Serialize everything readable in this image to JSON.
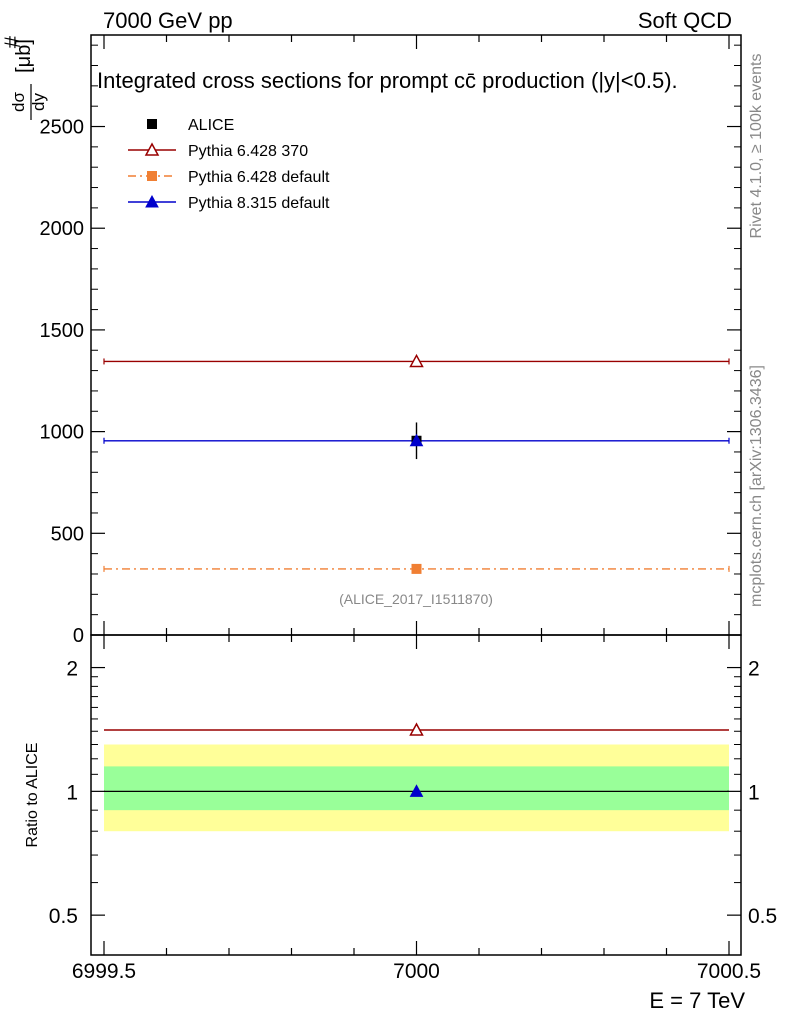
{
  "header": {
    "left": "7000 GeV pp",
    "right": "Soft QCD"
  },
  "side_labels": {
    "rivet": "Rivet 4.1.0, ≥ 100k events",
    "mcplots": "mcplots.cern.ch [arXiv:1306.3436]"
  },
  "chart_data": [
    {
      "type": "scatter",
      "panel": "main",
      "title": "Integrated cross sections for prompt cc̄ production (|y|<0.5).",
      "ylabel": "#dσ/dy [μb]",
      "ylabel_num": "dσ",
      "ylabel_den": "dy",
      "ylabel_prefix": "#",
      "ylabel_unit": "[μb]",
      "xlim": [
        6999.5,
        7000.5
      ],
      "ylim": [
        0,
        2950
      ],
      "y_ticks": [
        0,
        500,
        1000,
        1500,
        2000,
        2500
      ],
      "y_tick_labels": [
        "0",
        "500",
        "1000",
        "1500",
        "2000",
        "2500"
      ],
      "analysis_tag": "(ALICE_2017_I1511870)",
      "series": [
        {
          "name": "ALICE",
          "x": [
            7000
          ],
          "y": [
            955
          ],
          "xerr": [
            0
          ],
          "yerr": [
            90
          ],
          "color": "#000000",
          "marker": "square"
        },
        {
          "name": "Pythia 6.428 370",
          "x": [
            7000
          ],
          "y": [
            1345
          ],
          "xerr": [
            0.5
          ],
          "yerr": [
            25
          ],
          "color": "#990000",
          "marker": "open-triangle"
        },
        {
          "name": "Pythia 6.428 default",
          "x": [
            7000
          ],
          "y": [
            325
          ],
          "xerr": [
            0.5
          ],
          "yerr": [
            8
          ],
          "color": "#f07f33",
          "marker": "square"
        },
        {
          "name": "Pythia 8.315 default",
          "x": [
            7000
          ],
          "y": [
            955
          ],
          "xerr": [
            0.5
          ],
          "yerr": [
            18
          ],
          "color": "#0000cc",
          "marker": "triangle"
        }
      ]
    },
    {
      "type": "scatter",
      "panel": "ratio",
      "ylabel": "Ratio to ALICE",
      "xlabel": "E = 7 TeV",
      "xlim": [
        6999.5,
        7000.5
      ],
      "ylim": [
        0.4,
        2.4
      ],
      "y_scale": "log",
      "x_ticks": [
        6999.5,
        7000,
        7000.5
      ],
      "x_tick_labels": [
        "6999.5",
        "7000",
        "7000.5"
      ],
      "y_ticks": [
        0.5,
        1,
        2
      ],
      "y_tick_labels": [
        "0.5",
        "1",
        "2"
      ],
      "bands": [
        {
          "name": "total uncertainty",
          "low": 0.8,
          "high": 1.3,
          "color": "#ffff99"
        },
        {
          "name": "statistical uncertainty",
          "low": 0.9,
          "high": 1.15,
          "color": "#99ff99"
        }
      ],
      "reference": 1,
      "series": [
        {
          "name": "Pythia 6.428 370",
          "x": [
            7000
          ],
          "y": [
            1.41
          ],
          "color": "#990000",
          "marker": "open-triangle"
        },
        {
          "name": "Pythia 8.315 default",
          "x": [
            7000
          ],
          "y": [
            1.0
          ],
          "yerr": [
            0.02
          ],
          "color": "#0000cc",
          "marker": "triangle"
        }
      ]
    }
  ]
}
